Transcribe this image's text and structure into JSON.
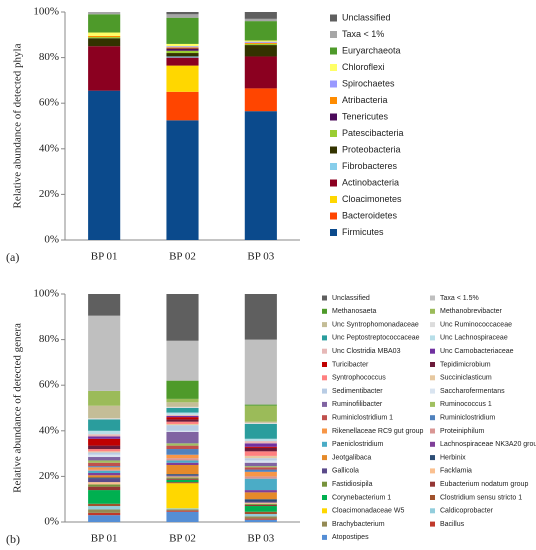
{
  "chart_data": [
    {
      "type": "stacked_bar",
      "panel_label": "(a)",
      "y_label": "Relative abundance of detected phyla",
      "categories": [
        "BP 01",
        "BP 02",
        "BP 03"
      ],
      "ylim": [
        0,
        100
      ],
      "yticks": [
        {
          "value": 0,
          "label": "0%"
        },
        {
          "value": 20,
          "label": "20%"
        },
        {
          "value": 40,
          "label": "40%"
        },
        {
          "value": 60,
          "label": "60%"
        },
        {
          "value": 80,
          "label": "80%"
        },
        {
          "value": 100,
          "label": "100%"
        }
      ],
      "series": [
        {
          "name": "Unclassified",
          "color": "#5f5f5f",
          "values": [
            0,
            1,
            3
          ]
        },
        {
          "name": "Taxa < 1%",
          "color": "#a6a6a6",
          "values": [
            1,
            1.5,
            1
          ]
        },
        {
          "name": "Euryarchaeota",
          "color": "#4e9a2a",
          "values": [
            8,
            11.5,
            8.5
          ]
        },
        {
          "name": "Chloroflexi",
          "color": "#ffff66",
          "values": [
            1.5,
            1,
            0.5
          ]
        },
        {
          "name": "Spirochaetes",
          "color": "#9999ff",
          "values": [
            0,
            0.5,
            0.5
          ]
        },
        {
          "name": "Atribacteria",
          "color": "#ff8c00",
          "values": [
            0.5,
            0.5,
            0.5
          ]
        },
        {
          "name": "Tenericutes",
          "color": "#4b0a5a",
          "values": [
            0,
            1,
            0
          ]
        },
        {
          "name": "Patescibacteria",
          "color": "#9acd32",
          "values": [
            0.5,
            1,
            0.5
          ]
        },
        {
          "name": "Proteobacteria",
          "color": "#333300",
          "values": [
            3.5,
            1.5,
            5
          ]
        },
        {
          "name": "Fibrobacteres",
          "color": "#87ceeb",
          "values": [
            0,
            0.5,
            0
          ]
        },
        {
          "name": "Actinobacteria",
          "color": "#8b0020",
          "values": [
            19.5,
            3.5,
            14
          ]
        },
        {
          "name": "Cloacimonetes",
          "color": "#ffd700",
          "values": [
            0,
            11.5,
            0
          ]
        },
        {
          "name": "Bacteroidetes",
          "color": "#ff4500",
          "values": [
            0,
            12.5,
            10
          ]
        },
        {
          "name": "Firmicutes",
          "color": "#0b4a8c",
          "values": [
            65.5,
            52.5,
            56.5
          ]
        }
      ]
    },
    {
      "type": "stacked_bar",
      "panel_label": "(b)",
      "y_label": "Relative abundance of detected genera",
      "categories": [
        "BP 01",
        "BP 02",
        "BP 03"
      ],
      "ylim": [
        0,
        100
      ],
      "yticks": [
        {
          "value": 0,
          "label": "0%"
        },
        {
          "value": 20,
          "label": "20%"
        },
        {
          "value": 40,
          "label": "40%"
        },
        {
          "value": 60,
          "label": "60%"
        },
        {
          "value": 80,
          "label": "80%"
        },
        {
          "value": 100,
          "label": "100%"
        }
      ],
      "series": [
        {
          "name": "Unclassified",
          "color": "#5f5f5f",
          "values": [
            9.5,
            20.5,
            20
          ]
        },
        {
          "name": "Taxa < 1.5%",
          "color": "#bfbfbf",
          "values": [
            33,
            17.5,
            28.5
          ]
        },
        {
          "name": "Methanosaeta",
          "color": "#4e9a2a",
          "values": [
            0,
            8,
            0.5
          ]
        },
        {
          "name": "Methanobrevibacter",
          "color": "#9bbb59",
          "values": [
            6.5,
            1.5,
            7
          ]
        },
        {
          "name": "Unc Syntrophomonadaceae",
          "color": "#c4bd97",
          "values": [
            5.5,
            2,
            0.5
          ]
        },
        {
          "name": "Unc Ruminococcaceae",
          "color": "#dcdcdc",
          "values": [
            0.5,
            0.5,
            0.5
          ]
        },
        {
          "name": "Unc Peptostreptococcaceae",
          "color": "#2a9d9d",
          "values": [
            5,
            2,
            6.5
          ]
        },
        {
          "name": "Unc Lachnospiraceae",
          "color": "#b7dee8",
          "values": [
            1.5,
            1,
            1
          ]
        },
        {
          "name": "Unc Clostridia MBA03",
          "color": "#e6b8b7",
          "values": [
            1,
            0.5,
            1
          ]
        },
        {
          "name": "Unc Carnobacteriaceae",
          "color": "#7030a0",
          "values": [
            1,
            0.5,
            1.5
          ]
        },
        {
          "name": "Turicibacter",
          "color": "#c00000",
          "values": [
            3,
            1,
            0.5
          ]
        },
        {
          "name": "Tepidimicrobium",
          "color": "#6b1a3a",
          "values": [
            1.5,
            1,
            1.5
          ]
        },
        {
          "name": "Syntrophococcus",
          "color": "#ff8080",
          "values": [
            1,
            1,
            2
          ]
        },
        {
          "name": "Succiniclasticum",
          "color": "#e6c8a0",
          "values": [
            0.5,
            0.5,
            1
          ]
        },
        {
          "name": "Sedimentibacter",
          "color": "#b8cce4",
          "values": [
            1,
            2.5,
            1
          ]
        },
        {
          "name": "Saccharofermentans",
          "color": "#d9e4f0",
          "values": [
            1,
            0.5,
            1
          ]
        },
        {
          "name": "Ruminofilibacter",
          "color": "#8064a2",
          "values": [
            1.5,
            5,
            1.5
          ]
        },
        {
          "name": "Ruminococcus 1",
          "color": "#a0c060",
          "values": [
            1,
            1,
            0.5
          ]
        },
        {
          "name": "Ruminiclostridium 1",
          "color": "#c0504d",
          "values": [
            1.5,
            1.5,
            1
          ]
        },
        {
          "name": "Ruminiclostridium",
          "color": "#4f81bd",
          "values": [
            0.5,
            2.5,
            1
          ]
        },
        {
          "name": "Rikenellaceae RC9 gut group",
          "color": "#f79646",
          "values": [
            1,
            1.5,
            2
          ]
        },
        {
          "name": "Proteiniphilum",
          "color": "#d99694",
          "values": [
            0.5,
            1,
            1
          ]
        },
        {
          "name": "Paeniclostridium",
          "color": "#4bacc6",
          "values": [
            1,
            1,
            5
          ]
        },
        {
          "name": "Lachnospiraceae NK3A20 group",
          "color": "#7f3f98",
          "values": [
            1,
            1,
            1
          ]
        },
        {
          "name": "Jeotgalibaca",
          "color": "#e58a2a",
          "values": [
            1,
            4,
            3
          ]
        },
        {
          "name": "Herbinix",
          "color": "#2c4d75",
          "values": [
            0.5,
            0.5,
            1
          ]
        },
        {
          "name": "Gallicola",
          "color": "#5a4a8a",
          "values": [
            1.5,
            0.5,
            0.5
          ]
        },
        {
          "name": "Facklamia",
          "color": "#fac090",
          "values": [
            1,
            0.5,
            0.5
          ]
        },
        {
          "name": "Fastidiosipila",
          "color": "#77933c",
          "values": [
            1,
            0.5,
            0.5
          ]
        },
        {
          "name": "Eubacterium nodatum group",
          "color": "#943634",
          "values": [
            1.5,
            0.5,
            0.5
          ]
        },
        {
          "name": "Corynebacterium 1",
          "color": "#00b050",
          "values": [
            6,
            1,
            2.5
          ]
        },
        {
          "name": "Clostridium sensu stricto 1",
          "color": "#a0522d",
          "values": [
            1,
            0.5,
            1
          ]
        },
        {
          "name": "Cloacimonadaceae W5",
          "color": "#ffd700",
          "values": [
            0,
            11,
            0
          ]
        },
        {
          "name": "Caldicoprobacter",
          "color": "#92cddc",
          "values": [
            1.5,
            0.5,
            1
          ]
        },
        {
          "name": "Brachybacterium",
          "color": "#948a54",
          "values": [
            1.5,
            0.5,
            1
          ]
        },
        {
          "name": "Bacillus",
          "color": "#c0392b",
          "values": [
            1,
            0.5,
            0.5
          ]
        },
        {
          "name": "Atopostipes",
          "color": "#558ed5",
          "values": [
            3,
            4.5,
            1
          ]
        }
      ]
    }
  ]
}
